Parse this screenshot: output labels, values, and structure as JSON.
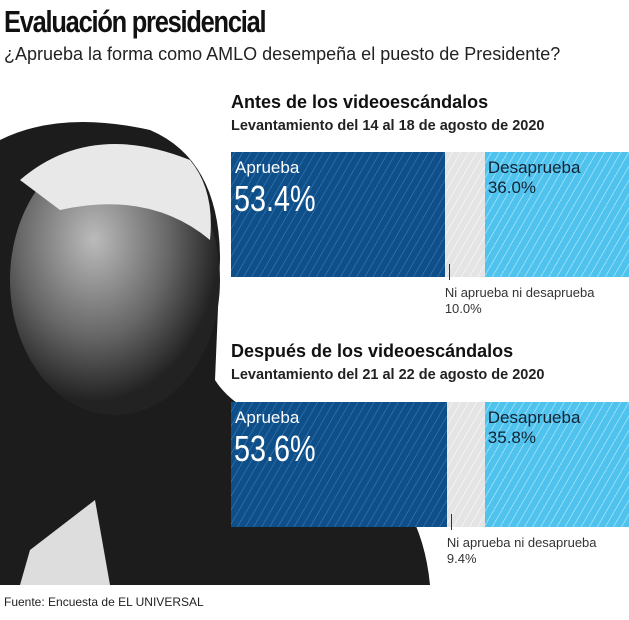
{
  "title": "Evaluación presidencial",
  "subtitle": "¿Aprueba la forma como AMLO desempeña el puesto de Presidente?",
  "source": "Fuente: Encuesta de EL UNIVERSAL",
  "colors": {
    "aprueba": "#0e4f8a",
    "ni": "#e4e4e4",
    "desaprueba": "#4fc3ee"
  },
  "chart_data": [
    {
      "type": "bar",
      "stacked": true,
      "title": "Antes de los videoescándalos",
      "subtitle": "Levantamiento del 14 al 18 de agosto de 2020",
      "series": [
        {
          "name": "Aprueba",
          "value": 53.4,
          "label": "53.4%"
        },
        {
          "name": "Ni aprueba ni desaprueba",
          "value": 10.0,
          "label": "10.0%"
        },
        {
          "name": "Desaprueba",
          "value": 36.0,
          "label": "36.0%"
        }
      ]
    },
    {
      "type": "bar",
      "stacked": true,
      "title": "Después de los videoescándalos",
      "subtitle": "Levantamiento del 21 al 22 de agosto de 2020",
      "series": [
        {
          "name": "Aprueba",
          "value": 53.6,
          "label": "53.6%"
        },
        {
          "name": "Ni aprueba ni desaprueba",
          "value": 9.4,
          "label": "9.4%"
        },
        {
          "name": "Desaprueba",
          "value": 35.8,
          "label": "35.8%"
        }
      ]
    }
  ]
}
